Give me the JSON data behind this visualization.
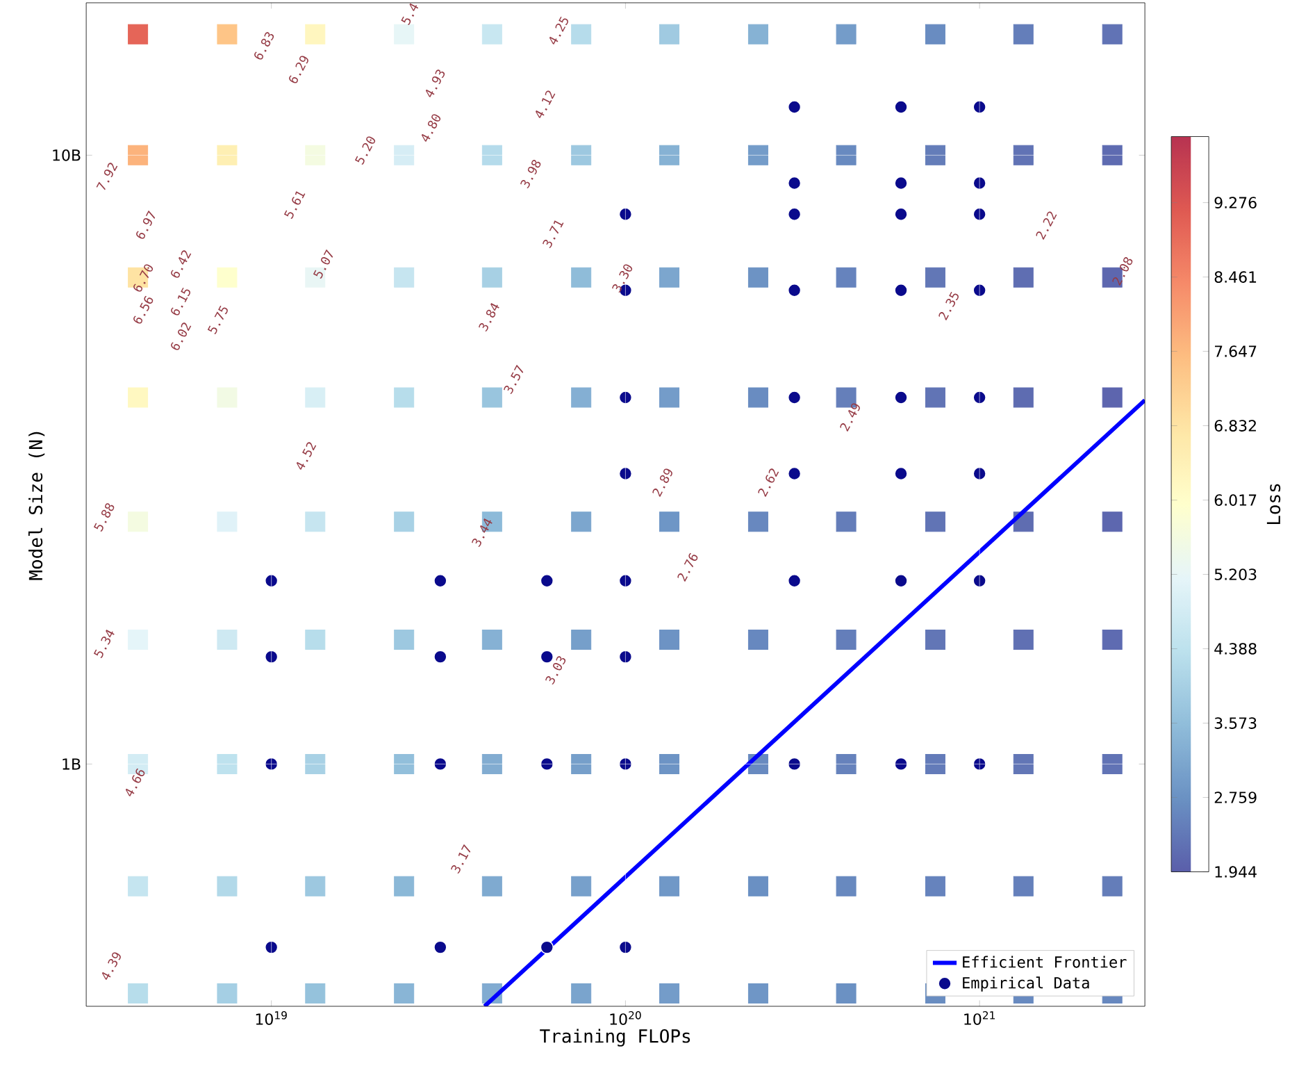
{
  "chart_data": {
    "type": "scatter",
    "xlabel": "Training FLOPs",
    "ylabel": "Model Size (N)",
    "clabel": "Loss",
    "log": "xy",
    "grid": true,
    "legend": "bottom right",
    "xlim": [
      3e+18,
      2.93e+21
    ],
    "xticks": [
      {
        "value": 1e+19,
        "label": "10$^{19}$"
      },
      {
        "value": 1e+20,
        "label": "10$^{20}$"
      },
      {
        "value": 1e+21,
        "label": "10$^{21}$"
      }
    ],
    "ylim": [
      0.4,
      17.8
    ],
    "yticks": [
      {
        "value": 1,
        "label": "1B"
      },
      {
        "value": 10,
        "label": "10B"
      }
    ],
    "clim": [
      1.944,
      10.0
    ],
    "cticks": [
      1.944,
      2.759,
      3.573,
      4.388,
      5.203,
      6.017,
      6.832,
      7.647,
      8.461,
      9.276
    ],
    "series": [
      {
        "type": "scatter",
        "marker": "square",
        "x": [
          4.2e+18,
          7.5e+18,
          1.33e+19,
          2.37e+19,
          4.2e+19,
          7.5e+19,
          1.33e+20,
          2.37e+20,
          4.2e+20,
          7.5e+20,
          1.33e+21,
          2.37e+21,
          4.2e+18,
          7.5e+18,
          1.33e+19,
          2.37e+19,
          4.2e+19,
          7.5e+19,
          1.33e+20,
          2.37e+20,
          4.2e+20,
          7.5e+20,
          1.33e+21,
          2.37e+21,
          4.2e+18,
          7.5e+18,
          1.33e+19,
          2.37e+19,
          4.2e+19,
          7.5e+19,
          1.33e+20,
          2.37e+20,
          4.2e+20,
          7.5e+20,
          1.33e+21,
          2.37e+21,
          4.2e+18,
          7.5e+18,
          1.33e+19,
          2.37e+19,
          4.2e+19,
          7.5e+19,
          1.33e+20,
          2.37e+20,
          4.2e+20,
          7.5e+20,
          1.33e+21,
          2.37e+21,
          4.2e+18,
          7.5e+18,
          1.33e+19,
          2.37e+19,
          4.2e+19,
          7.5e+19,
          1.33e+20,
          2.37e+20,
          4.2e+20,
          7.5e+20,
          1.33e+21,
          2.37e+21,
          4.2e+18,
          7.5e+18,
          1.33e+19,
          2.37e+19,
          4.2e+19,
          7.5e+19,
          1.33e+20,
          2.37e+20,
          4.2e+20,
          7.5e+20,
          1.33e+21,
          2.37e+21,
          4.2e+18,
          7.5e+18,
          1.33e+19,
          2.37e+19,
          4.2e+19,
          7.5e+19,
          1.33e+20,
          2.37e+20,
          4.2e+20,
          7.5e+20,
          1.33e+21,
          2.37e+21,
          4.2e+18,
          7.5e+18,
          1.33e+19,
          2.37e+19,
          4.2e+19,
          7.5e+19,
          1.33e+20,
          2.37e+20,
          4.2e+20,
          7.5e+20,
          1.33e+21,
          2.37e+21,
          4.2e+18,
          7.5e+18,
          1.33e+19,
          2.37e+19,
          4.2e+19,
          7.5e+19,
          1.33e+20,
          2.37e+20,
          4.2e+20,
          7.5e+20,
          1.33e+21,
          2.37e+21
        ],
        "values": [
          15.8,
          15.8,
          15.8,
          15.8,
          15.8,
          15.8,
          15.8,
          15.8,
          15.8,
          15.8,
          15.8,
          15.8,
          10,
          10,
          10,
          10,
          10,
          10,
          10,
          10,
          10,
          10,
          10,
          10,
          6.3,
          6.3,
          6.3,
          6.3,
          6.3,
          6.3,
          6.3,
          6.3,
          6.3,
          6.3,
          6.3,
          6.3,
          4,
          4,
          4,
          4,
          4,
          4,
          4,
          4,
          4,
          4,
          4,
          4,
          2.5,
          2.5,
          2.5,
          2.5,
          2.5,
          2.5,
          2.5,
          2.5,
          2.5,
          2.5,
          2.5,
          2.5,
          1.6,
          1.6,
          1.6,
          1.6,
          1.6,
          1.6,
          1.6,
          1.6,
          1.6,
          1.6,
          1.6,
          1.6,
          1,
          1,
          1,
          1,
          1,
          1,
          1,
          1,
          1,
          1,
          1,
          1,
          0.63,
          0.63,
          0.63,
          0.63,
          0.63,
          0.63,
          0.63,
          0.63,
          0.63,
          0.63,
          0.63,
          0.63,
          0.42,
          0.42,
          0.42,
          0.42,
          0.42,
          0.42,
          0.42,
          0.42,
          0.42,
          0.42,
          0.42,
          0.42
        ],
        "colors": [
          "#e56558",
          "#fec587",
          "#fff6bf",
          "#e7f6f7",
          "#c8e7f1",
          "#b6dceb",
          "#a0cae1",
          "#86b2d4",
          "#749cc9",
          "#698cc1",
          "#647eba",
          "#6173b5",
          "#fcb37c",
          "#feefb3",
          "#f4fbe1",
          "#d6edf5",
          "#b5dbeb",
          "#9dc8e0",
          "#86b2d4",
          "#749cc9",
          "#688ac0",
          "#647db9",
          "#6173b5",
          "#5e6bb1",
          "#fee3a3",
          "#feffcd",
          "#e9f6f5",
          "#c5e4f0",
          "#a8d1e4",
          "#8fbcd9",
          "#7ca6ce",
          "#6d93c4",
          "#6683bd",
          "#6277b6",
          "#5f6eb2",
          "#5d67af",
          "#fff8c1",
          "#f2fae4",
          "#d8eff5",
          "#b7ddeb",
          "#99c5de",
          "#84afd3",
          "#749cc9",
          "#698cc1",
          "#657fba",
          "#6174b5",
          "#5e6cb1",
          "#5d65ae",
          "#f4fbe1",
          "#e0f2f8",
          "#c6e5f0",
          "#a8d1e5",
          "#8dbad9",
          "#7ca6ce",
          "#6e96c6",
          "#6888bf",
          "#647db9",
          "#6174b5",
          "#5f6db1",
          "#5d67af",
          "#e5f5f9",
          "#cee9f2",
          "#b7ddeb",
          "#9dc8e0",
          "#86b1d4",
          "#769fca",
          "#6d93c4",
          "#6788bf",
          "#647eba",
          "#6276b6",
          "#6070b3",
          "#5e6bb1",
          "#d3ecf4",
          "#bee2ee",
          "#a8d1e5",
          "#92bfdb",
          "#82acd1",
          "#769fca",
          "#6d94c5",
          "#688ac0",
          "#6682bc",
          "#637bb9",
          "#6276b6",
          "#6173b5",
          "#c5e5f0",
          "#b2d9e9",
          "#9dc8e0",
          "#8bb8d7",
          "#7faad0",
          "#77a0cb",
          "#7098c7",
          "#6a90c3",
          "#6889bf",
          "#6683bd",
          "#6580bb",
          "#647db9",
          "#b7ddeb",
          "#a5cfe4",
          "#95c2dc",
          "#89b5d6",
          "#81abd1",
          "#7aa4cd",
          "#749cc9",
          "#6f96c6",
          "#6b91c3",
          "#698dc1",
          "#688ac0",
          "#6788bf"
        ],
        "cvalues": [
          9.0,
          7.45,
          6.25,
          5.2,
          4.6,
          4.25,
          3.85,
          3.35,
          2.95,
          2.68,
          2.45,
          2.28,
          7.75,
          6.5,
          5.6,
          4.85,
          4.24,
          3.79,
          3.35,
          2.95,
          2.65,
          2.43,
          2.28,
          2.15,
          6.85,
          5.95,
          5.25,
          4.55,
          3.98,
          3.53,
          3.13,
          2.8,
          2.54,
          2.34,
          2.19,
          2.09,
          6.2,
          5.55,
          4.9,
          4.28,
          3.73,
          3.3,
          2.95,
          2.68,
          2.47,
          2.3,
          2.16,
          2.06,
          5.6,
          5.05,
          4.55,
          4.0,
          3.5,
          3.13,
          2.84,
          2.62,
          2.44,
          2.29,
          2.18,
          2.09,
          5.15,
          4.7,
          4.28,
          3.8,
          3.34,
          3.01,
          2.8,
          2.61,
          2.45,
          2.33,
          2.23,
          2.15,
          4.8,
          4.4,
          4.0,
          3.6,
          3.25,
          3.0,
          2.81,
          2.65,
          2.52,
          2.41,
          2.33,
          2.28,
          4.53,
          4.18,
          3.8,
          3.45,
          3.2,
          3.03,
          2.88,
          2.74,
          2.63,
          2.54,
          2.48,
          2.44,
          4.28,
          3.95,
          3.65,
          3.4,
          3.23,
          3.09,
          2.96,
          2.85,
          2.76,
          2.69,
          2.64,
          2.61
        ]
      },
      {
        "name": "Efficient Frontier",
        "type": "line",
        "color": "#0000ff",
        "line_style": "solid",
        "x": [
          4e+19,
          2.93e+21
        ],
        "values": [
          0.4,
          3.96
        ]
      },
      {
        "name": "Empirical Data",
        "color": "#0a0a8c",
        "marker": "circle",
        "x": [
          1e+19,
          1e+19,
          1e+19,
          1e+19,
          3e+19,
          3e+19,
          3e+19,
          3e+19,
          6e+19,
          6e+19,
          6e+19,
          6e+19,
          1e+20,
          1e+20,
          1e+20,
          1e+20,
          1e+20,
          1e+20,
          1e+20,
          1e+20,
          3e+20,
          3e+20,
          3e+20,
          3e+20,
          3e+20,
          3e+20,
          3e+20,
          3e+20,
          6e+20,
          6e+20,
          6e+20,
          6e+20,
          6e+20,
          6e+20,
          6e+20,
          6e+20,
          1e+21,
          1e+21,
          1e+21,
          1e+21,
          1e+21,
          1e+21,
          1e+21,
          1e+21
        ],
        "values": [
          0.5,
          1,
          1.5,
          2,
          0.5,
          1,
          1.5,
          2,
          0.5,
          1,
          1.5,
          2,
          0.5,
          1,
          1.5,
          2,
          3,
          4,
          6,
          8,
          1,
          2,
          3,
          4,
          6,
          8,
          9,
          12,
          1,
          2,
          3,
          4,
          6,
          8,
          9,
          12,
          1,
          2,
          3,
          4,
          6,
          8,
          9,
          12
        ]
      }
    ],
    "annotations": [
      "6.83",
      "6.29",
      "5.4",
      "4.25",
      "4.93",
      "4.80",
      "4.12",
      "5.20",
      "3.98",
      "5.61",
      "3.71",
      "5.07",
      "6.42",
      "6.97",
      "6.70",
      "6.56",
      "6.15",
      "6.02",
      "5.75",
      "3.84",
      "3.57",
      "4.52",
      "7.92",
      "3.30",
      "5.88",
      "5.34",
      "4.66",
      "4.39",
      "3.44",
      "3.03",
      "3.17",
      "2.89",
      "2.76",
      "2.62",
      "2.49",
      "2.35",
      "2.22",
      "2.08"
    ]
  }
}
